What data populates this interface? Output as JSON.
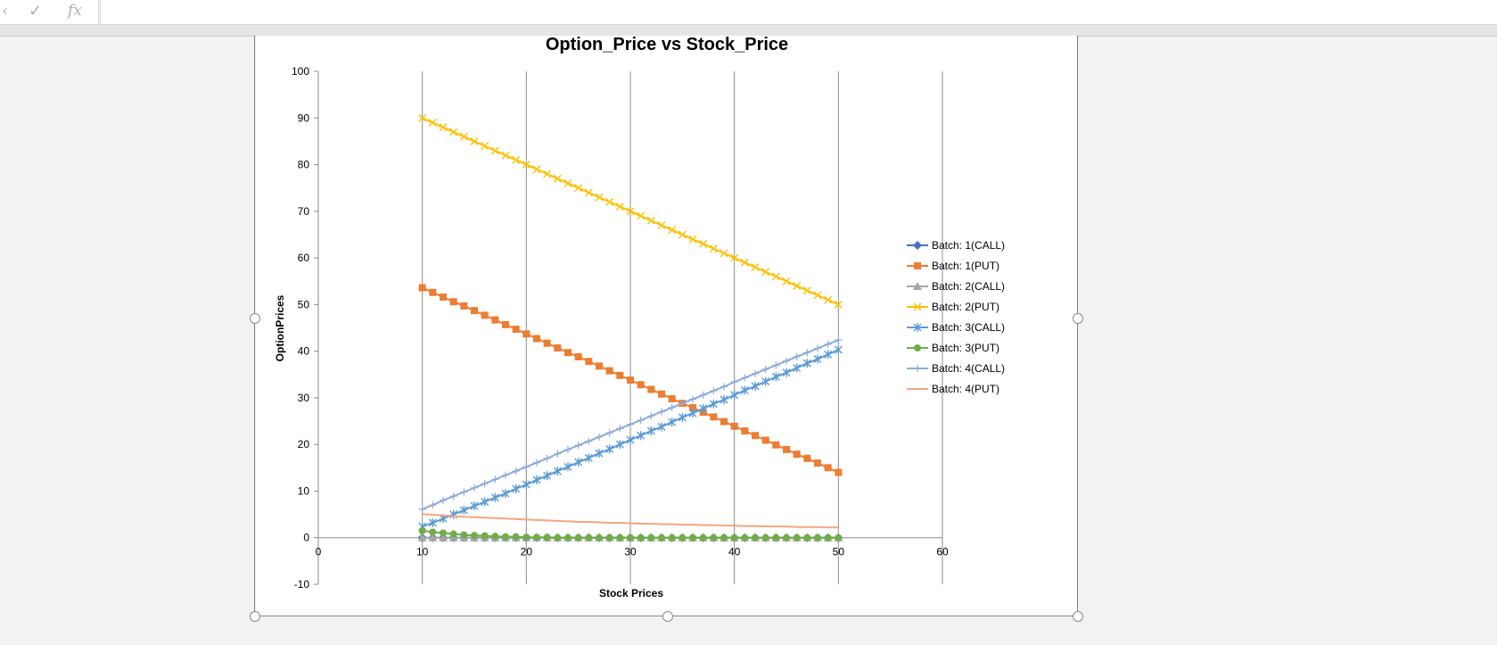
{
  "toolbar": {
    "cancel_icon": "cancel-x-icon",
    "confirm_icon": "checkmark-icon",
    "function_icon": "fx-icon",
    "function_label": "fx"
  },
  "chart_data": {
    "type": "scatter",
    "title": "Option_Price vs Stock_Price",
    "xlabel": "Stock Prices",
    "ylabel": "OptionPrices",
    "xlim": [
      0,
      60
    ],
    "ylim": [
      -10,
      100
    ],
    "xticks": [
      0,
      10,
      20,
      30,
      40,
      50,
      60
    ],
    "yticks": [
      -10,
      0,
      10,
      20,
      30,
      40,
      50,
      60,
      70,
      80,
      90,
      100
    ],
    "x_gridlines": true,
    "y_gridlines": false,
    "legend_position": "right",
    "x": [
      10,
      11,
      12,
      13,
      14,
      15,
      16,
      17,
      18,
      19,
      20,
      21,
      22,
      23,
      24,
      25,
      26,
      27,
      28,
      29,
      30,
      31,
      32,
      33,
      34,
      35,
      36,
      37,
      38,
      39,
      40,
      41,
      42,
      43,
      44,
      45,
      46,
      47,
      48,
      49,
      50
    ],
    "series": [
      {
        "name": "Batch: 1(CALL)",
        "color": "#4472c4",
        "marker": "diamond",
        "values": [
          0,
          0,
          0,
          0,
          0,
          0,
          0,
          0,
          0,
          0,
          0,
          0,
          0,
          0,
          0,
          0,
          0,
          0,
          0,
          0,
          0,
          0,
          0,
          0,
          0,
          0,
          0,
          0,
          0,
          0,
          0,
          0,
          0,
          0,
          0,
          0,
          0,
          0,
          0,
          0,
          0
        ]
      },
      {
        "name": "Batch: 1(PUT)",
        "color": "#ed7d31",
        "marker": "square",
        "values": [
          53.6,
          52.6,
          51.6,
          50.6,
          49.7,
          48.7,
          47.7,
          46.7,
          45.7,
          44.7,
          43.7,
          42.7,
          41.7,
          40.7,
          39.7,
          38.8,
          37.8,
          36.8,
          35.8,
          34.8,
          33.8,
          32.8,
          31.8,
          30.8,
          29.8,
          28.8,
          27.9,
          26.9,
          25.9,
          24.9,
          23.9,
          22.9,
          21.9,
          20.9,
          19.9,
          18.9,
          17.9,
          17.0,
          16.0,
          15.0,
          14.0
        ]
      },
      {
        "name": "Batch: 2(CALL)",
        "color": "#a5a5a5",
        "marker": "triangle",
        "values": [
          0,
          0,
          0,
          0,
          0,
          0,
          0,
          0,
          0,
          0,
          0,
          0,
          0,
          0,
          0,
          0,
          0,
          0,
          0,
          0,
          0,
          0,
          0,
          0,
          0,
          0,
          0,
          0,
          0,
          0,
          0,
          0,
          0,
          0,
          0,
          0,
          0,
          0,
          0,
          0,
          0
        ]
      },
      {
        "name": "Batch: 2(PUT)",
        "color": "#ffc000",
        "marker": "x",
        "values": [
          90,
          89,
          88,
          87,
          86,
          85,
          84,
          83,
          82,
          81,
          80,
          79,
          78,
          77,
          76,
          75,
          74,
          73,
          72,
          71,
          70,
          69,
          68,
          67,
          66,
          65,
          64,
          63,
          62,
          61,
          60,
          59,
          58,
          57,
          56,
          55,
          54,
          53,
          52,
          51,
          50
        ]
      },
      {
        "name": "Batch: 3(CALL)",
        "color": "#5b9bd5",
        "marker": "star",
        "values": [
          2.4,
          3.2,
          4.1,
          5.0,
          5.9,
          6.8,
          7.7,
          8.6,
          9.5,
          10.5,
          11.4,
          12.4,
          13.3,
          14.3,
          15.2,
          16.2,
          17.1,
          18.1,
          19.0,
          20.0,
          21.0,
          21.9,
          22.9,
          23.8,
          24.8,
          25.8,
          26.7,
          27.7,
          28.7,
          29.6,
          30.6,
          31.6,
          32.5,
          33.5,
          34.5,
          35.4,
          36.4,
          37.4,
          38.3,
          39.3,
          40.3
        ]
      },
      {
        "name": "Batch: 3(PUT)",
        "color": "#70ad47",
        "marker": "circle",
        "values": [
          1.5,
          1.2,
          1.0,
          0.8,
          0.6,
          0.5,
          0.4,
          0.3,
          0.2,
          0.2,
          0.1,
          0.1,
          0.1,
          0,
          0,
          0,
          0,
          0,
          0,
          0,
          0,
          0,
          0,
          0,
          0,
          0,
          0,
          0,
          0,
          0,
          0,
          0,
          0,
          0,
          0,
          0,
          0,
          0,
          0,
          0,
          0
        ]
      },
      {
        "name": "Batch: 4(CALL)",
        "color": "#8faadc",
        "marker": "plus",
        "values": [
          6.1,
          7.0,
          8.0,
          8.9,
          9.8,
          10.7,
          11.6,
          12.5,
          13.4,
          14.3,
          15.2,
          16.1,
          17.0,
          18.0,
          18.9,
          19.8,
          20.7,
          21.6,
          22.5,
          23.4,
          24.3,
          25.2,
          26.1,
          27.0,
          27.9,
          28.8,
          29.7,
          30.6,
          31.5,
          32.4,
          33.4,
          34.3,
          35.2,
          36.1,
          37.0,
          37.9,
          38.8,
          39.7,
          40.6,
          41.5,
          42.4
        ]
      },
      {
        "name": "Batch: 4(PUT)",
        "color": "#f4a582",
        "marker": "none",
        "values": [
          5.1,
          4.9,
          4.8,
          4.6,
          4.5,
          4.4,
          4.3,
          4.2,
          4.1,
          4.0,
          3.9,
          3.8,
          3.7,
          3.6,
          3.5,
          3.4,
          3.4,
          3.3,
          3.2,
          3.2,
          3.1,
          3.0,
          3.0,
          2.9,
          2.9,
          2.8,
          2.8,
          2.7,
          2.7,
          2.6,
          2.6,
          2.5,
          2.5,
          2.4,
          2.4,
          2.4,
          2.3,
          2.3,
          2.3,
          2.2,
          2.2
        ]
      }
    ]
  }
}
